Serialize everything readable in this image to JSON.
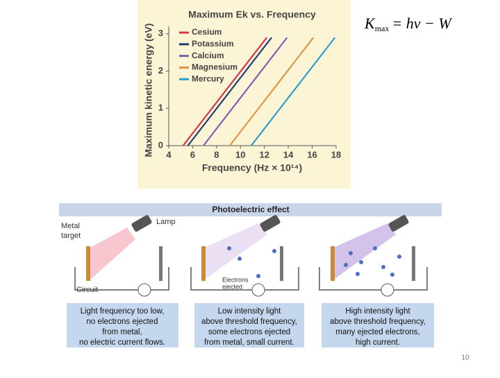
{
  "chart_data": {
    "type": "line",
    "title": "Maximum Ek vs. Frequency",
    "x_label": "Frequency (Hz × 10¹⁴)",
    "y_label": "Maximum kinetic energy (eV)",
    "xlim": [
      4,
      18
    ],
    "xticks": [
      4,
      6,
      8,
      10,
      12,
      14,
      16,
      18
    ],
    "ylim": [
      0,
      3.2
    ],
    "yticks": [
      0,
      1,
      2,
      3
    ],
    "series": [
      {
        "name": "Cesium",
        "color": "#d9344a",
        "x": [
          5.2,
          12.2
        ],
        "values": [
          0,
          2.9
        ]
      },
      {
        "name": "Potassium",
        "color": "#1f3f73",
        "x": [
          5.6,
          12.6
        ],
        "values": [
          0,
          2.9
        ]
      },
      {
        "name": "Calcium",
        "color": "#7f5fae",
        "x": [
          6.9,
          13.9
        ],
        "values": [
          0,
          2.9
        ]
      },
      {
        "name": "Magnesium",
        "color": "#e09448",
        "x": [
          9.1,
          16.1
        ],
        "values": [
          0,
          2.9
        ]
      },
      {
        "name": "Mercury",
        "color": "#2f9bc8",
        "x": [
          10.9,
          17.9
        ],
        "values": [
          0,
          2.9
        ]
      }
    ],
    "legend": "upper left"
  },
  "formula": {
    "symbol": "K",
    "subscript": "max",
    "rest": "= hν − W"
  },
  "diagram": {
    "header": "Photoelectric effect",
    "labels": {
      "lamp": "Lamp",
      "metal_target": [
        "Metal",
        "target"
      ],
      "circuit": "Circuit",
      "electrons": [
        "Electrons",
        "ejected"
      ]
    },
    "captions": [
      [
        "Light frequency too low,",
        "no electrons ejected",
        "from metal,",
        "no electric current flows."
      ],
      [
        "Low intensity light",
        "above threshold frequency,",
        "some electrons ejected",
        "from metal, small current."
      ],
      [
        "High intensity light",
        "above threshold frequency,",
        "many ejected electrons,",
        "high current."
      ]
    ]
  },
  "page_number": "10"
}
